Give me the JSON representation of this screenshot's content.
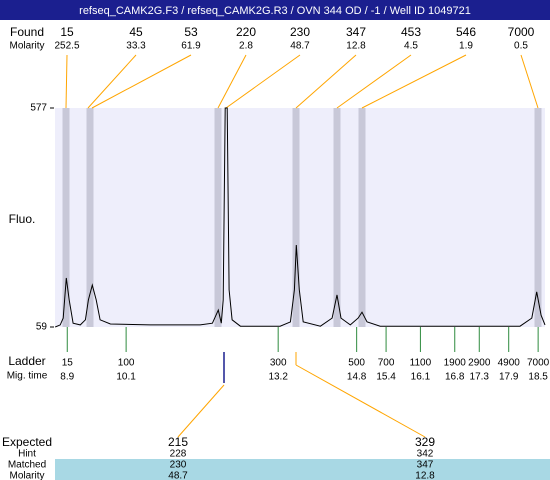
{
  "header": {
    "title": "refseq_CAMK2G.F3 / refseq_CAMK2G.R3 / OVN 344 OD / -1  / Well ID 1049721"
  },
  "found": {
    "label": "Found",
    "sizes": [
      15,
      45,
      53,
      220,
      230,
      347,
      453,
      546,
      7000
    ],
    "molarity_label": "Molarity",
    "molarity": [
      252.5,
      33.3,
      61.9,
      2.8,
      48.7,
      12.8,
      4.5,
      1.9,
      0.5
    ]
  },
  "chart_data": {
    "type": "line",
    "ylabel": "Fluo.",
    "ylim": [
      59,
      577
    ],
    "yticks": [
      59,
      577
    ],
    "xlim": [
      8.65,
      18.64
    ],
    "x": [
      8.655,
      8.757,
      8.818,
      8.88,
      8.94,
      9.02,
      9.165,
      9.27,
      9.33,
      9.41,
      9.49,
      9.57,
      9.78,
      10.59,
      11.61,
      11.86,
      11.98,
      12.04,
      12.08,
      12.12,
      12.16,
      12.2,
      12.26,
      12.43,
      13.24,
      13.45,
      13.53,
      13.57,
      13.63,
      13.71,
      14.06,
      14.3,
      14.4,
      14.48,
      14.67,
      14.83,
      14.91,
      15.01,
      15.28,
      18.13,
      18.37,
      18.47,
      18.56,
      18.64
    ],
    "series": [
      {
        "color": "#000000",
        "values": [
          59,
          64,
          80,
          175,
          123,
          68,
          64,
          76,
          123,
          158,
          123,
          76,
          66,
          64,
          64,
          68,
          99,
          68,
          123,
          577,
          577,
          147,
          76,
          61,
          61,
          71,
          147,
          253,
          147,
          71,
          61,
          80,
          135,
          80,
          64,
          80,
          94,
          71,
          61,
          61,
          80,
          142,
          87,
          64
        ]
      }
    ]
  },
  "ladder": {
    "label": "Ladder",
    "time_label": "Mig. time",
    "sizes": [
      15,
      100,
      300,
      500,
      700,
      1100,
      1900,
      2900,
      4900,
      7000
    ],
    "times": [
      8.9,
      10.1,
      13.2,
      14.8,
      15.4,
      16.1,
      16.8,
      17.3,
      17.9,
      18.5
    ]
  },
  "expected": {
    "label": "Expected",
    "hint_label": "Hint",
    "matched_label": "Matched",
    "molarity_label": "Molarity",
    "columns": [
      {
        "expected": 215,
        "hint": 228,
        "matched": 230,
        "molarity": 48.7
      },
      {
        "expected": 329,
        "hint": 342,
        "matched": 347,
        "molarity": 12.8
      }
    ]
  }
}
